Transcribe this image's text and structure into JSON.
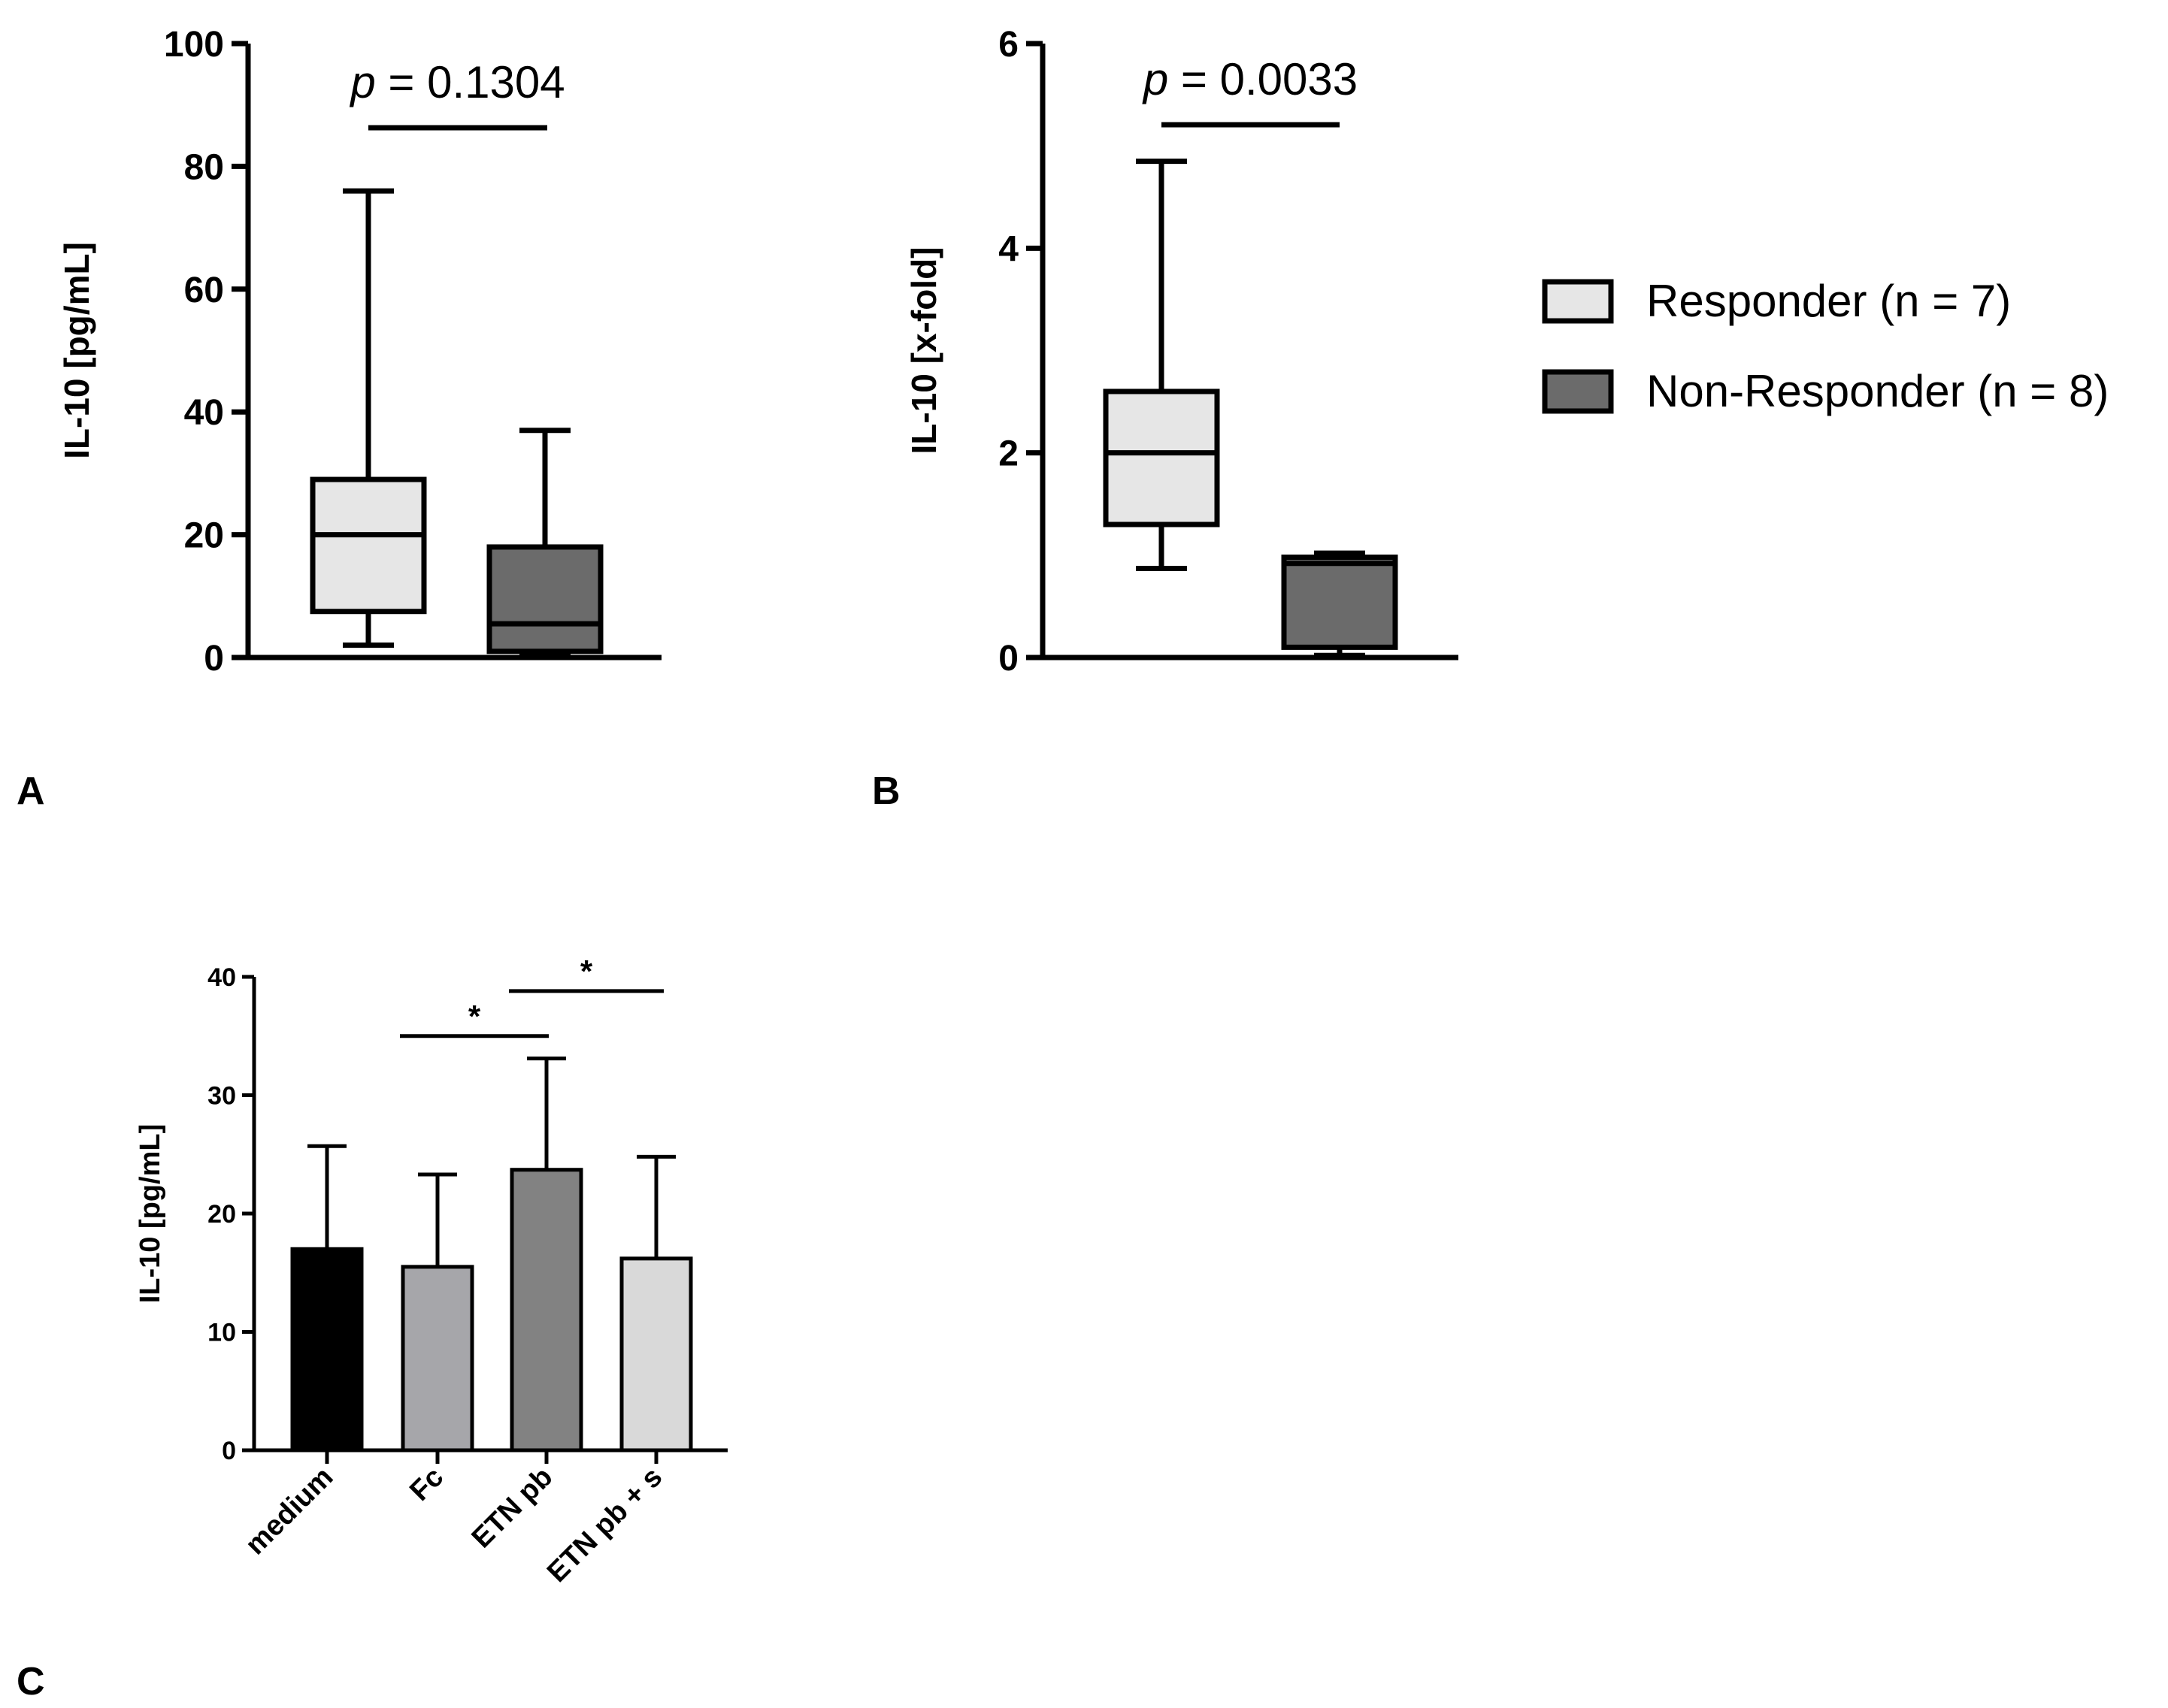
{
  "chart_data": [
    {
      "panel": "A",
      "type": "box",
      "ylabel": "IL-10 [pg/mL]",
      "ylim": [
        0,
        100
      ],
      "yticks": [
        0,
        20,
        40,
        60,
        80,
        100
      ],
      "yticks_text": [
        "0",
        "20",
        "40",
        "60",
        "80",
        "100"
      ],
      "p_prefix": "p",
      "p_rest": " = 0.1304",
      "series": [
        {
          "name": "Responder (n = 7)",
          "color": "#e6e6e6",
          "min": 2,
          "q1": 7.5,
          "median": 20,
          "q3": 29,
          "max": 76
        },
        {
          "name": "Non-Responder (n = 8)",
          "color": "#6b6b6b",
          "min": 0.5,
          "q1": 1,
          "median": 5.5,
          "q3": 18,
          "max": 37
        }
      ]
    },
    {
      "panel": "B",
      "type": "box",
      "ylabel": "IL-10 [x-fold]",
      "ylim": [
        0,
        6
      ],
      "yticks": [
        0,
        2,
        4,
        6
      ],
      "yticks_text": [
        "0",
        "2",
        "4",
        "6"
      ],
      "p_prefix": "p",
      "p_rest": " = 0.0033",
      "series": [
        {
          "name": "Responder (n = 7)",
          "color": "#e6e6e6",
          "min": 0.87,
          "q1": 1.3,
          "median": 2.0,
          "q3": 2.6,
          "max": 4.85
        },
        {
          "name": "Non-Responder (n = 8)",
          "color": "#6b6b6b",
          "min": 0.02,
          "q1": 0.1,
          "median": 0.92,
          "q3": 0.98,
          "max": 1.02
        }
      ]
    },
    {
      "panel": "C",
      "type": "bar",
      "ylabel": "IL-10 [pg/mL]",
      "ylim": [
        0,
        40
      ],
      "yticks": [
        0,
        10,
        20,
        30,
        40
      ],
      "yticks_text": [
        "0",
        "10",
        "20",
        "30",
        "40"
      ],
      "categories": [
        "medium",
        "Fc",
        "ETN pb",
        "ETN pb + s"
      ],
      "values": [
        17,
        15.5,
        23.7,
        16.2
      ],
      "errors": [
        8.7,
        7.8,
        9.4,
        8.6
      ],
      "colors": [
        "#000000",
        "#a6a6aa",
        "#828282",
        "#d9d9d9"
      ],
      "significance": [
        {
          "from": 1,
          "to": 2,
          "label": "*",
          "y": 35
        },
        {
          "from": 2,
          "to": 3,
          "label": "*",
          "y": 38.8
        }
      ]
    }
  ],
  "legend": {
    "items": [
      {
        "label": "Responder (n = 7)",
        "color": "#e6e6e6"
      },
      {
        "label": "Non-Responder (n = 8)",
        "color": "#6b6b6b"
      }
    ]
  },
  "panel_labels": [
    "A",
    "B",
    "C"
  ]
}
